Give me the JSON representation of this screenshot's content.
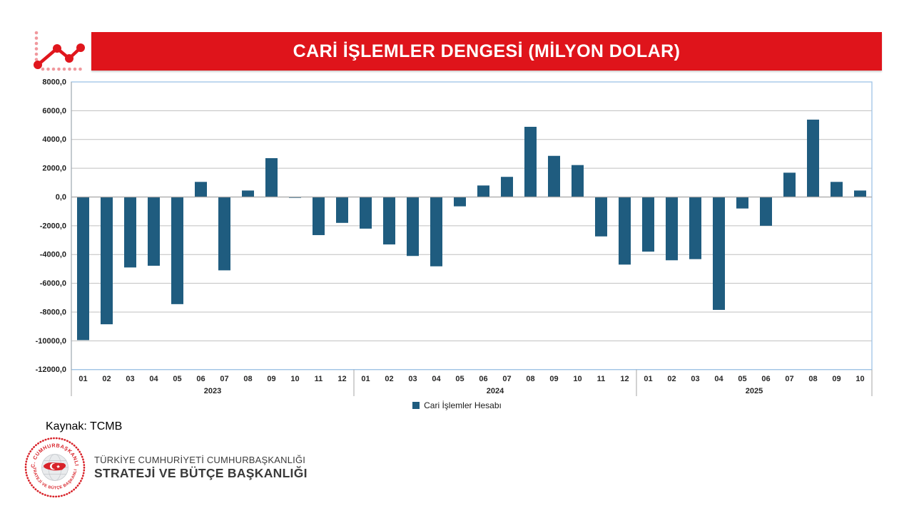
{
  "header": {
    "title": "CARİ İŞLEMLER DENGESİ (MİLYON DOLAR)",
    "banner_color": "#DF141B"
  },
  "chart_data": {
    "type": "bar",
    "title": "CARİ İŞLEMLER DENGESİ (MİLYON DOLAR)",
    "xlabel": "",
    "ylabel": "",
    "ylim": [
      -12000,
      8000
    ],
    "ytick_step": 2000,
    "ytick_labels": [
      "8000,0",
      "6000,0",
      "4000,0",
      "2000,0",
      "0,0",
      "-2000,0",
      "-4000,0",
      "-6000,0",
      "-8000,0",
      "-10000,0",
      "-12000,0"
    ],
    "grid": true,
    "legend_position": "bottom-center",
    "series_name": "Cari İşlemler Hesabı",
    "bar_color": "#1F5C7F",
    "gridline_color": "#BFBFBF",
    "border_color": "#9DC3E6",
    "axis_color": "#A6A6A6",
    "groups": [
      {
        "year": "2023",
        "months": [
          "01",
          "02",
          "03",
          "04",
          "05",
          "06",
          "07",
          "08",
          "09",
          "10",
          "11",
          "12"
        ],
        "values": [
          -9950,
          -8850,
          -4900,
          -4780,
          -7450,
          1050,
          -5100,
          450,
          2700,
          -60,
          -2650,
          -1800
        ]
      },
      {
        "year": "2024",
        "months": [
          "01",
          "02",
          "03",
          "04",
          "05",
          "06",
          "07",
          "08",
          "09",
          "10",
          "11",
          "12"
        ],
        "values": [
          -2200,
          -3300,
          -4100,
          -4820,
          -650,
          800,
          1400,
          4880,
          2860,
          2220,
          -2740,
          -4700
        ]
      },
      {
        "year": "2025",
        "months": [
          "01",
          "02",
          "03",
          "04",
          "05",
          "06",
          "07",
          "08",
          "09",
          "10"
        ],
        "values": [
          -3800,
          -4400,
          -4320,
          -7850,
          -800,
          -2000,
          1690,
          5380,
          1050,
          450
        ]
      }
    ]
  },
  "source": {
    "label": "Kaynak: TCMB"
  },
  "footer_logo": {
    "line1": "TÜRKİYE CUMHURİYETİ CUMHURBAŞKANLIĞI",
    "line2": "STRATEJİ VE BÜTÇE BAŞKANLIĞI",
    "seal_top": "T.C. CUMHURBAŞKANLIĞI",
    "seal_bottom": "STRATEJİ VE BÜTÇE BAŞKANLIĞI"
  }
}
